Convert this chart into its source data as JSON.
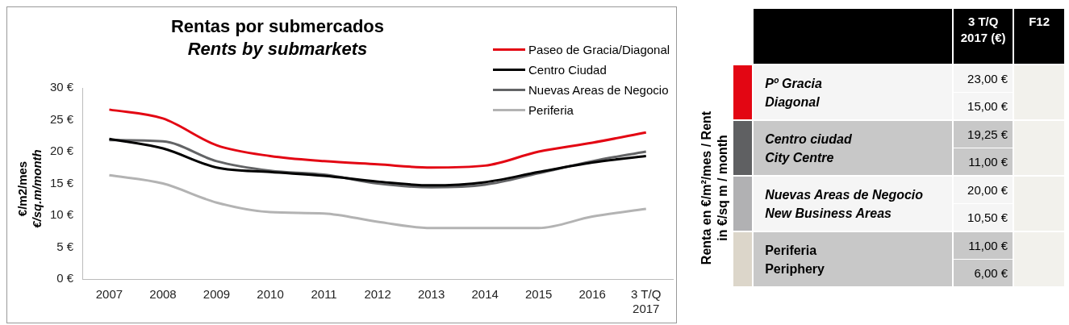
{
  "chart_data": [
    {
      "type": "line",
      "title": "Rentas por submercados",
      "subtitle": "Rents by submarkets",
      "ylabel": "€/m2/mes\n€/sq.m/month",
      "categories": [
        "2007",
        "2008",
        "2009",
        "2010",
        "2011",
        "2012",
        "2013",
        "2014",
        "2015",
        "2016",
        "3 T/Q\n2017"
      ],
      "series": [
        {
          "name": "Paseo de Gracia/Diagonal",
          "color": "#e30613",
          "values": [
            26.6,
            25.2,
            21,
            19.3,
            18.5,
            18,
            17.5,
            17.8,
            20,
            21.4,
            23
          ]
        },
        {
          "name": "Centro Ciudad",
          "color": "#000000",
          "values": [
            22,
            20.5,
            17.5,
            16.8,
            16.2,
            15.3,
            14.7,
            15.2,
            16.8,
            18.3,
            19.3
          ]
        },
        {
          "name": "Nuevas Areas de Negocio",
          "color": "#636466",
          "values": [
            21.8,
            21.6,
            18.5,
            17,
            16.4,
            15,
            14.4,
            14.8,
            16.6,
            18.5,
            20
          ]
        },
        {
          "name": "Periferia",
          "color": "#b3b3b3",
          "values": [
            16.3,
            15,
            12,
            10.5,
            10.3,
            9,
            8,
            8,
            8,
            9.8,
            11
          ]
        }
      ],
      "ylim": [
        0,
        30
      ],
      "yticks": [
        {
          "value": 0,
          "label": "0 €"
        },
        {
          "value": 5,
          "label": "5 €"
        },
        {
          "value": 10,
          "label": "10 €"
        },
        {
          "value": 15,
          "label": "15 €"
        },
        {
          "value": 20,
          "label": "20 €"
        },
        {
          "value": 25,
          "label": "25 €"
        },
        {
          "value": 30,
          "label": "30 €"
        }
      ],
      "grid": false,
      "legend": "top right",
      "marker": "none",
      "line_style": "solid"
    },
    {
      "type": "other",
      "ylabel": "Renta en €/m²/mes / Rent in €/sq m / month",
      "categories": [
        "3 T/Q\n2017 (€)",
        "F12"
      ],
      "y_categories": [
        "Pº Gracia\nDiagonal",
        "Centro ciudad\nCity Centre",
        "Nuevas Areas de Negocio\nNew Business Areas",
        "Periferia\nPeriphery"
      ],
      "cell_labels": [
        [
          "23,00 €",
          "15,00 €"
        ],
        [
          "19,25 €",
          "11,00 €"
        ],
        [
          "20,00 €",
          "10,50 €"
        ],
        [
          "11,00 €",
          "6,00 €"
        ]
      ]
    }
  ]
}
